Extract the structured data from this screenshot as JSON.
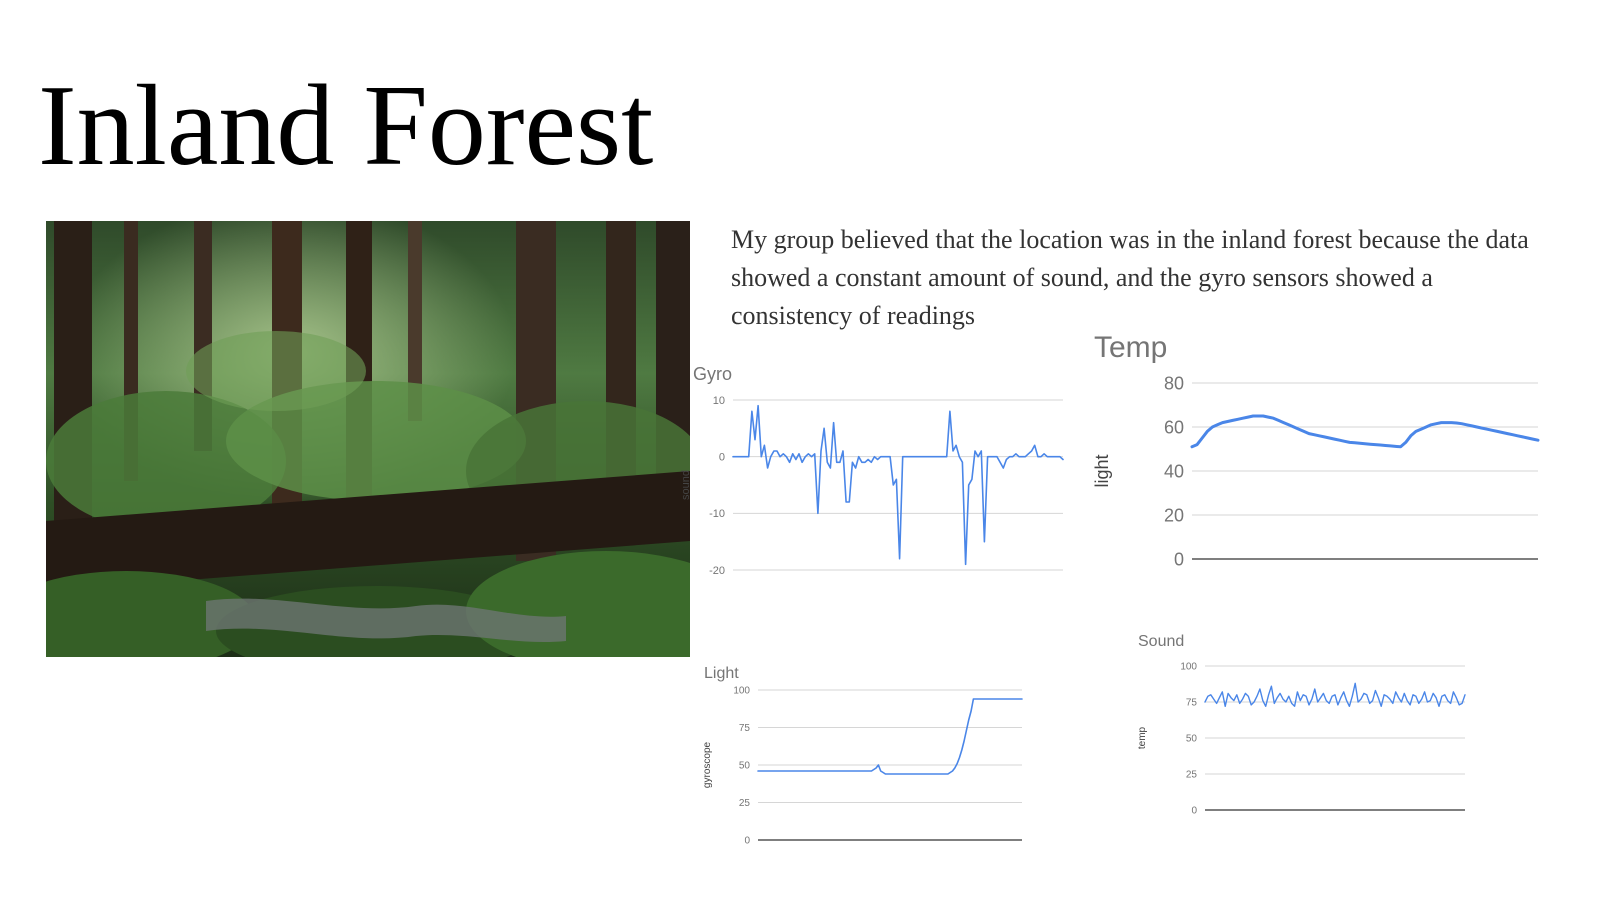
{
  "slide": {
    "title": "Inland Forest",
    "description": "My group believed that the location was in the inland forest because the data showed a constant amount of sound,  and the gyro sensors showed a consistency of readings"
  },
  "colors": {
    "series": "#4a86e8",
    "grid": "#d6d6d6",
    "baseline": "#333333",
    "text": "#757575"
  },
  "chart_data": [
    {
      "id": "gyro",
      "type": "line",
      "title": "Gyro",
      "ylabel": "sound",
      "xlabel": "",
      "ylim": [
        -20,
        10
      ],
      "yticks": [
        10,
        0,
        -10,
        -20
      ],
      "grid": true,
      "legend": "none",
      "series": [
        {
          "values": [
            0,
            0,
            0,
            0,
            0,
            0,
            8,
            3,
            9,
            0,
            2,
            -2,
            0,
            1,
            1,
            0,
            0.5,
            0,
            -1,
            0.5,
            -0.5,
            0.5,
            -1,
            0,
            0.5,
            0,
            0.5,
            -10,
            1,
            5,
            -1,
            -2,
            6,
            -1,
            -1,
            1,
            -8,
            -8,
            -1,
            -2,
            0,
            -1,
            -1,
            -0.5,
            -1,
            0,
            -0.5,
            0,
            0,
            0,
            0,
            -5,
            -4,
            -18,
            0,
            0,
            0,
            0,
            0,
            0,
            0,
            0,
            0,
            0,
            0,
            0,
            0,
            0,
            0,
            8,
            1,
            2,
            0,
            -1,
            -19,
            -5,
            -4,
            1,
            0,
            1,
            -15,
            0,
            0,
            0,
            0,
            -1,
            -2,
            -0.5,
            0,
            0,
            0.5,
            0,
            0,
            0,
            0.5,
            1,
            2,
            0,
            0,
            0.5,
            0,
            0,
            0,
            0,
            0,
            -0.5
          ]
        }
      ]
    },
    {
      "id": "temp",
      "type": "line",
      "title": "Temp",
      "ylabel": "light",
      "xlabel": "",
      "ylim": [
        0,
        80
      ],
      "yticks": [
        80,
        60,
        40,
        20,
        0
      ],
      "grid": true,
      "legend": "none",
      "series": [
        {
          "values": [
            51,
            52,
            55,
            58,
            60,
            61,
            62,
            62.5,
            63,
            63.5,
            64,
            64.5,
            65,
            65,
            65,
            64.5,
            64,
            63,
            62,
            61,
            60,
            59,
            58,
            57,
            56.5,
            56,
            55.5,
            55,
            54.5,
            54,
            53.5,
            53,
            52.8,
            52.6,
            52.4,
            52.2,
            52,
            51.8,
            51.6,
            51.4,
            51.2,
            51,
            53,
            56,
            58,
            59,
            60,
            61,
            61.5,
            62,
            62,
            62,
            61.8,
            61.5,
            61,
            60.5,
            60,
            59.5,
            59,
            58.5,
            58,
            57.5,
            57,
            56.5,
            56,
            55.5,
            55,
            54.5,
            54
          ]
        }
      ]
    },
    {
      "id": "light",
      "type": "line",
      "title": "Light",
      "ylabel": "gyroscope",
      "xlabel": "",
      "ylim": [
        0,
        100
      ],
      "yticks": [
        100,
        75,
        50,
        25,
        0
      ],
      "grid": true,
      "legend": "none",
      "series": [
        {
          "values": [
            46,
            46,
            46,
            46,
            46,
            46,
            46,
            46,
            46,
            46,
            46,
            46,
            46,
            46,
            46,
            46,
            46,
            46,
            46,
            46,
            46,
            46,
            46,
            46,
            46,
            46,
            46,
            46,
            46,
            46,
            46,
            46,
            46,
            46,
            46,
            46,
            46,
            46,
            46,
            46,
            46,
            46,
            46,
            46,
            46,
            46,
            46,
            46,
            46,
            46,
            47,
            48,
            50,
            46,
            45,
            44,
            44,
            44,
            44,
            44,
            44,
            44,
            44,
            44,
            44,
            44,
            44,
            44,
            44,
            44,
            44,
            44,
            44,
            44,
            44,
            44,
            44,
            44,
            44,
            44,
            44,
            44,
            44,
            45,
            46,
            48,
            51,
            55,
            60,
            66,
            73,
            80,
            86,
            94,
            94,
            94,
            94,
            94,
            94,
            94,
            94,
            94,
            94,
            94,
            94,
            94,
            94,
            94,
            94,
            94,
            94,
            94,
            94,
            94,
            94
          ]
        }
      ]
    },
    {
      "id": "sound",
      "type": "line",
      "title": "Sound",
      "ylabel": "temp",
      "xlabel": "",
      "ylim": [
        0,
        100
      ],
      "yticks": [
        100,
        75,
        50,
        25,
        0
      ],
      "grid": true,
      "legend": "none",
      "series": [
        {
          "values": [
            75,
            79,
            80,
            77,
            74,
            78,
            82,
            72,
            81,
            78,
            76,
            80,
            74,
            77,
            81,
            79,
            73,
            75,
            79,
            84,
            76,
            72,
            80,
            86,
            74,
            78,
            81,
            77,
            75,
            79,
            74,
            72,
            82,
            76,
            80,
            79,
            73,
            77,
            84,
            75,
            78,
            81,
            76,
            74,
            79,
            80,
            73,
            78,
            82,
            76,
            72,
            79,
            88,
            75,
            77,
            81,
            80,
            74,
            76,
            83,
            78,
            72,
            80,
            79,
            77,
            74,
            82,
            78,
            75,
            81,
            76,
            73,
            80,
            79,
            74,
            77,
            82,
            75,
            76,
            81,
            78,
            72,
            79,
            80,
            76,
            74,
            82,
            78,
            73,
            74,
            80
          ]
        }
      ]
    }
  ]
}
